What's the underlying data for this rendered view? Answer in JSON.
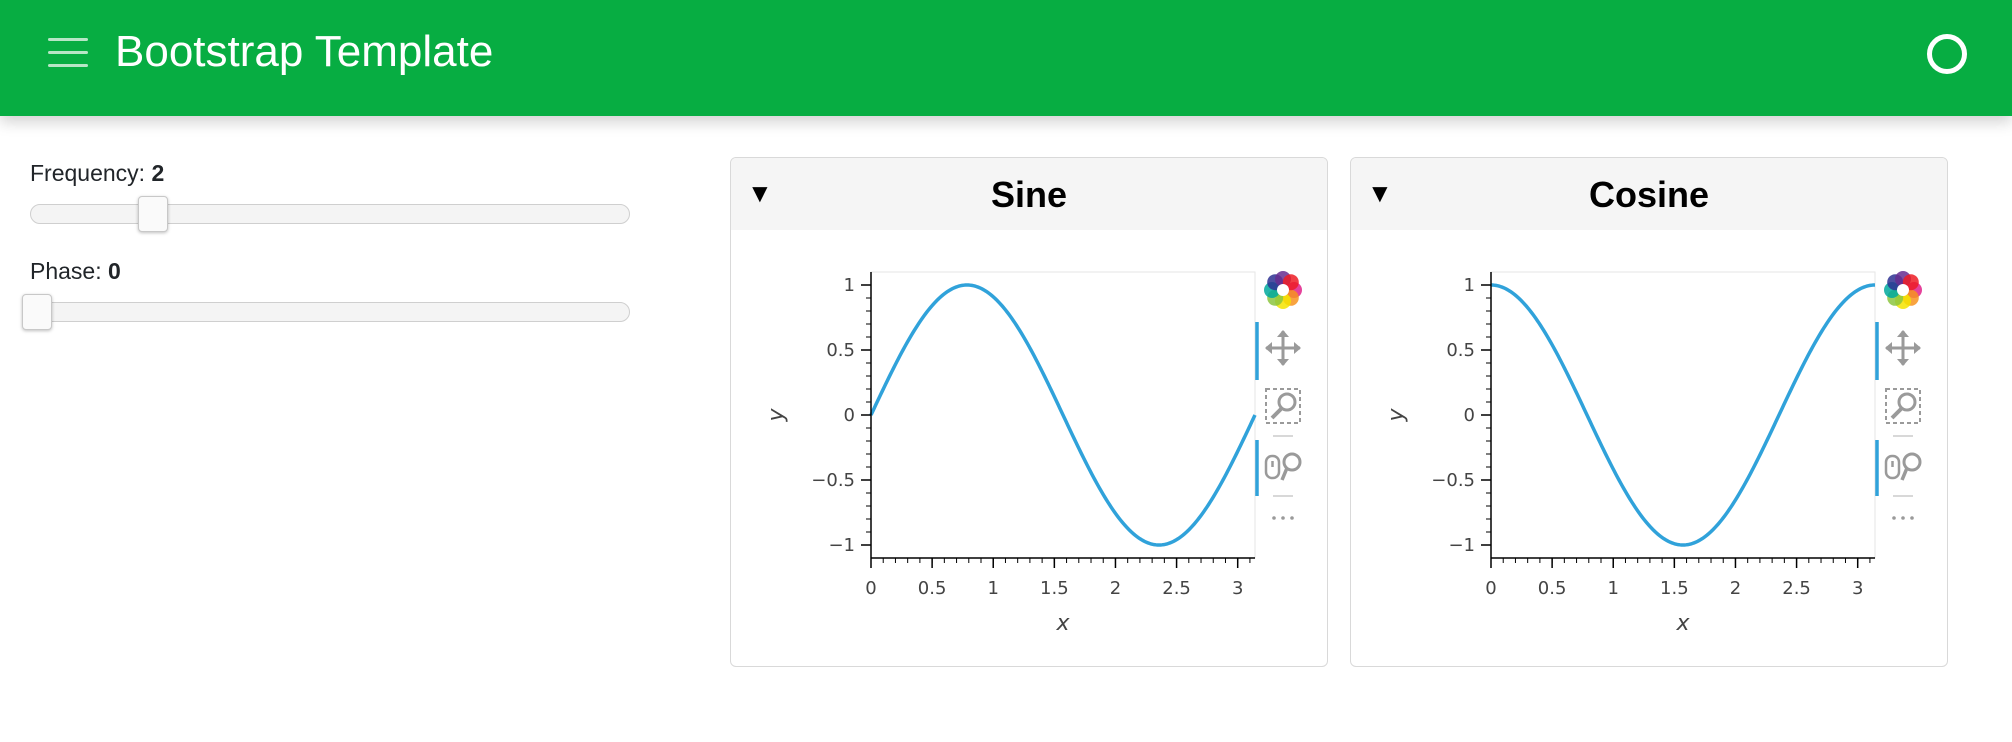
{
  "header": {
    "title": "Bootstrap Template",
    "background": "#07ad42"
  },
  "sidebar": {
    "frequency": {
      "label": "Frequency:",
      "value": "2",
      "min": 0,
      "max": 10,
      "current": 2
    },
    "phase": {
      "label": "Phase:",
      "value": "0",
      "min": 0,
      "max": 3.14,
      "current": 0
    }
  },
  "toolbar_icons": [
    "bokeh-logo-icon",
    "pan-icon",
    "box-zoom-icon",
    "wheel-zoom-icon",
    "more-icon"
  ],
  "cards": [
    {
      "toggle": "▼",
      "title": "Sine",
      "chart_data": {
        "type": "line",
        "function": "sin",
        "frequency": 2,
        "phase": 0,
        "xlim": [
          0,
          3.14159
        ],
        "ylim": [
          -1.1,
          1.1
        ],
        "xticks": [
          "0",
          "0.5",
          "1",
          "1.5",
          "2",
          "2.5",
          "3"
        ],
        "yticks": [
          "1",
          "0.5",
          "0",
          "−0.5",
          "−1"
        ],
        "xlabel": "x",
        "ylabel": "y",
        "line_color": "#30a2da"
      }
    },
    {
      "toggle": "▼",
      "title": "Cosine",
      "chart_data": {
        "type": "line",
        "function": "cos",
        "frequency": 2,
        "phase": 0,
        "xlim": [
          0,
          3.14159
        ],
        "ylim": [
          -1.1,
          1.1
        ],
        "xticks": [
          "0",
          "0.5",
          "1",
          "1.5",
          "2",
          "2.5",
          "3"
        ],
        "yticks": [
          "1",
          "0.5",
          "0",
          "−0.5",
          "−1"
        ],
        "xlabel": "x",
        "ylabel": "y",
        "line_color": "#30a2da"
      }
    }
  ]
}
